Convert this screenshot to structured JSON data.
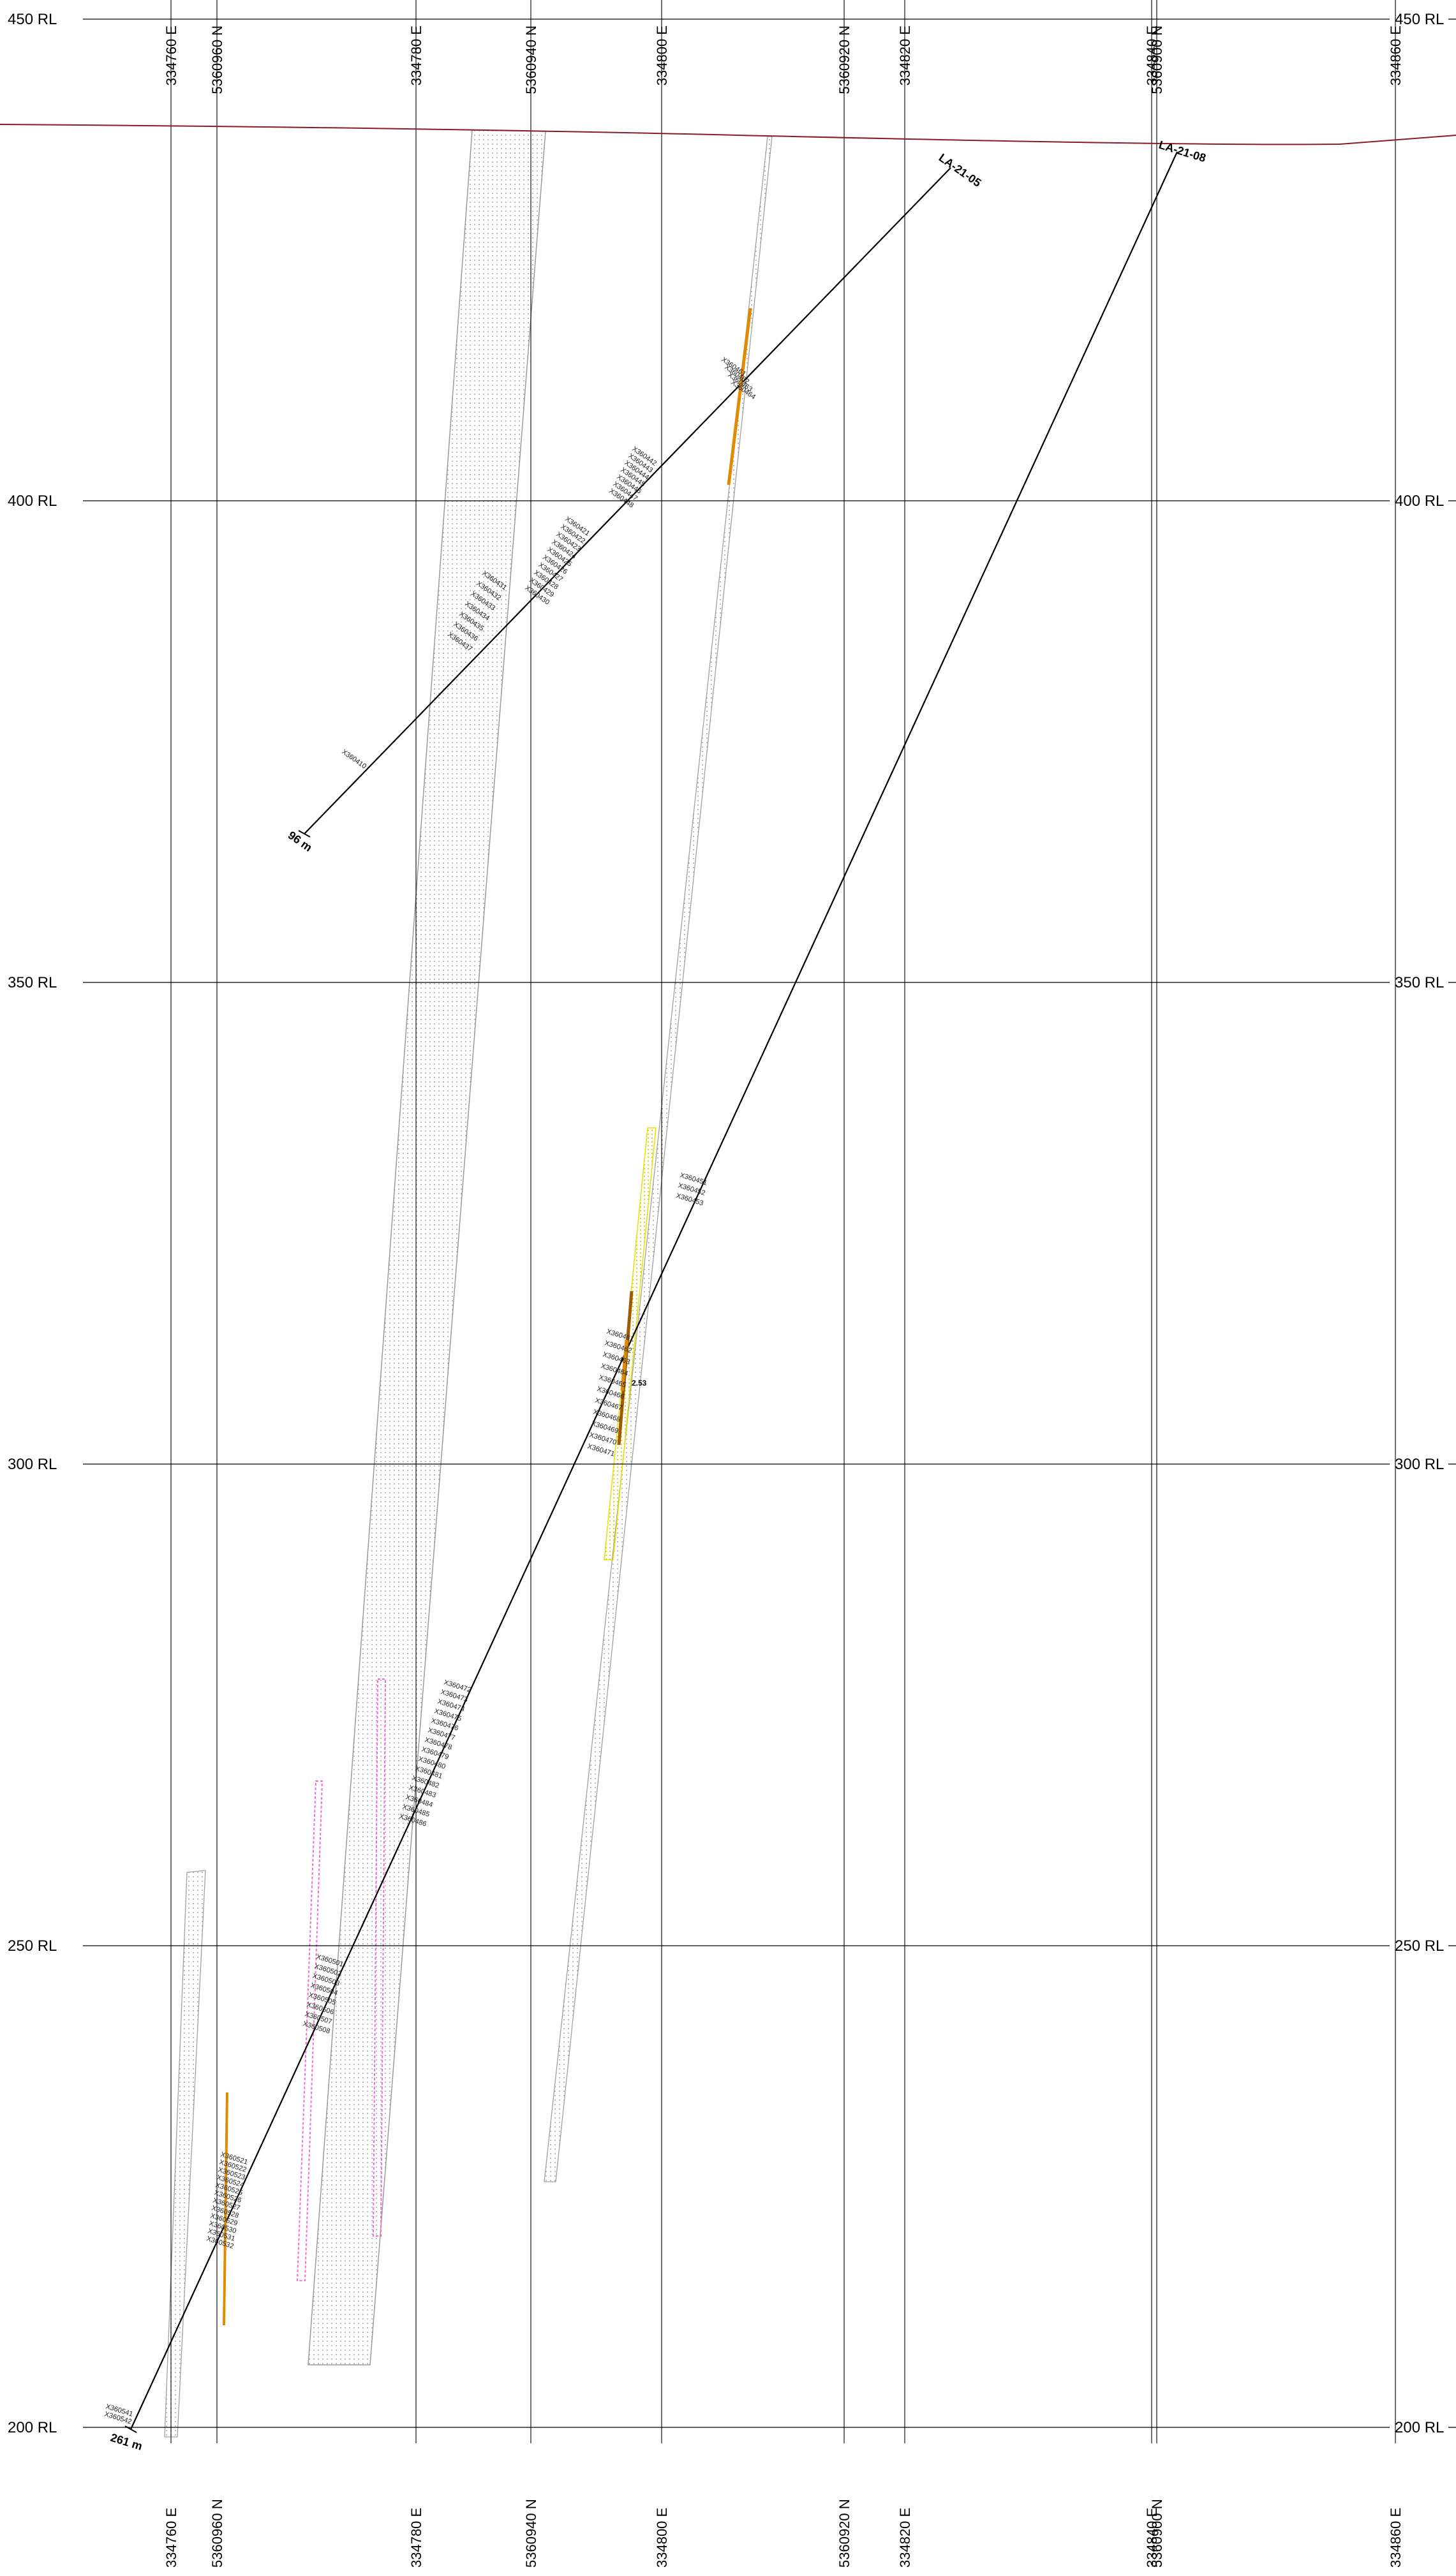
{
  "section": {
    "rl_levels": [
      {
        "elev": 450,
        "label": "450 RL"
      },
      {
        "elev": 400,
        "label": "400 RL"
      },
      {
        "elev": 350,
        "label": "350 RL"
      },
      {
        "elev": 300,
        "label": "300 RL"
      },
      {
        "elev": 250,
        "label": "250 RL"
      },
      {
        "elev": 200,
        "label": "200 RL"
      }
    ],
    "grid_lines": [
      {
        "label": "334760 E"
      },
      {
        "label": "5360960 N"
      },
      {
        "label": "334780 E"
      },
      {
        "label": "5360940 N"
      },
      {
        "label": "334800 E"
      },
      {
        "label": "5360920 N"
      },
      {
        "label": "334820 E"
      },
      {
        "label": "334840 E"
      },
      {
        "label": "5360900 N"
      },
      {
        "label": "334860 E"
      }
    ],
    "drillholes": [
      {
        "name": "LA-21-05",
        "depth_label": "96 m"
      },
      {
        "name": "LA-21-08",
        "depth_label": "261 m"
      }
    ],
    "assay_label": "2.53",
    "colors": {
      "grid": "#000000",
      "topography": "#8b1a2b",
      "drill_trace": "#000000",
      "mineral_zone": "#9a9a9a",
      "pink_zone": "#ff66cc",
      "yellow_zone": "#e8e000",
      "assay_orange": "#e08a00",
      "assay_dark": "#a05a00"
    },
    "sample_labels": {
      "hole05_upper": [
        "X360461",
        "X360462",
        "X360463",
        "X360464"
      ],
      "hole05_lower": [
        "X360442",
        "X360443",
        "X360444",
        "X360445",
        "X360446",
        "X360447",
        "X360448"
      ],
      "hole05_mid": [
        "X360421",
        "X360422",
        "X360423",
        "X360424",
        "X360425",
        "X360426",
        "X360427",
        "X360428",
        "X360429",
        "X360430"
      ],
      "hole05_low": [
        "X360431",
        "X360432",
        "X360433",
        "X360434",
        "X360435",
        "X360436",
        "X360437"
      ],
      "hole05_single": [
        "X360410"
      ],
      "hole08_upper": [
        "X360451",
        "X360452",
        "X360453"
      ],
      "hole08_mid": [
        "X360461",
        "X360462",
        "X360463",
        "X360464",
        "X360465",
        "X360466",
        "X360467",
        "X360468",
        "X360469",
        "X360470",
        "X360471"
      ],
      "hole08_low": [
        "X360472",
        "X360473",
        "X360474",
        "X360475",
        "X360476",
        "X360477",
        "X360478",
        "X360479",
        "X360480",
        "X360481",
        "X360482",
        "X360483",
        "X360484",
        "X360485",
        "X360486"
      ],
      "hole08_lower": [
        "X360501",
        "X360502",
        "X360503",
        "X360504",
        "X360505",
        "X360506",
        "X360507",
        "X360508"
      ],
      "hole08_bottom": [
        "X360521",
        "X360522",
        "X360523",
        "X360524",
        "X360525",
        "X360526",
        "X360527",
        "X360528",
        "X360529",
        "X360530",
        "X360531",
        "X360532"
      ],
      "hole08_end": [
        "X360541",
        "X360542"
      ]
    }
  }
}
